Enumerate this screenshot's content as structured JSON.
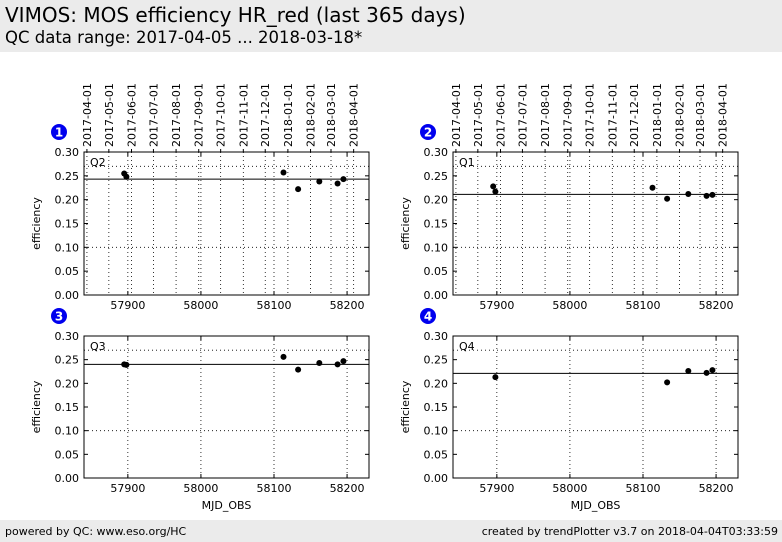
{
  "header": {
    "title": "VIMOS: MOS efficiency HR_red (last 365 days)",
    "subtitle": "QC data range: 2017-04-05 ... 2018-03-18*"
  },
  "footer": {
    "left": "powered by QC: www.eso.org/HC",
    "right": "created by trendPlotter v3.7 on 2018-04-04T03:33:59"
  },
  "chart_data": [
    {
      "type": "scatter",
      "panel_number": "1",
      "quadrant_label": "Q2",
      "ylabel": "efficiency",
      "xlabel": "",
      "xlim": [
        57840,
        58230
      ],
      "ylim": [
        0.0,
        0.3
      ],
      "x_ticks": [
        57900,
        58000,
        58100,
        58200
      ],
      "y_ticks": [
        "0.00",
        "0.05",
        "0.10",
        "0.15",
        "0.20",
        "0.25",
        "0.30"
      ],
      "dotted_lines": [
        0.1,
        0.27
      ],
      "reference_line": 0.243,
      "date_ticks": [
        "2017-04-01",
        "2017-05-01",
        "2017-06-01",
        "2017-07-01",
        "2017-08-01",
        "2017-09-01",
        "2017-10-01",
        "2017-11-01",
        "2017-12-01",
        "2018-01-01",
        "2018-02-01",
        "2018-03-01",
        "2018-04-01"
      ],
      "points": {
        "x": [
          57895,
          57898,
          58113,
          58133,
          58162,
          58187,
          58195
        ],
        "y": [
          0.255,
          0.248,
          0.257,
          0.222,
          0.238,
          0.234,
          0.243
        ]
      }
    },
    {
      "type": "scatter",
      "panel_number": "2",
      "quadrant_label": "Q1",
      "ylabel": "efficiency",
      "xlabel": "",
      "xlim": [
        57840,
        58230
      ],
      "ylim": [
        0.0,
        0.3
      ],
      "x_ticks": [
        57900,
        58000,
        58100,
        58200
      ],
      "y_ticks": [
        "0.00",
        "0.05",
        "0.10",
        "0.15",
        "0.20",
        "0.25",
        "0.30"
      ],
      "dotted_lines": [
        0.1,
        0.27
      ],
      "reference_line": 0.211,
      "date_ticks": [
        "2017-04-01",
        "2017-05-01",
        "2017-06-01",
        "2017-07-01",
        "2017-08-01",
        "2017-09-01",
        "2017-10-01",
        "2017-11-01",
        "2017-12-01",
        "2018-01-01",
        "2018-02-01",
        "2018-03-01",
        "2018-04-01"
      ],
      "points": {
        "x": [
          57895,
          57898,
          58113,
          58133,
          58162,
          58187,
          58195
        ],
        "y": [
          0.228,
          0.217,
          0.225,
          0.202,
          0.212,
          0.208,
          0.21
        ]
      }
    },
    {
      "type": "scatter",
      "panel_number": "3",
      "quadrant_label": "Q3",
      "ylabel": "efficiency",
      "xlabel": "MJD_OBS",
      "xlim": [
        57840,
        58230
      ],
      "ylim": [
        0.0,
        0.3
      ],
      "x_ticks": [
        57900,
        58000,
        58100,
        58200
      ],
      "y_ticks": [
        "0.00",
        "0.05",
        "0.10",
        "0.15",
        "0.20",
        "0.25",
        "0.30"
      ],
      "dotted_lines": [
        0.1,
        0.27
      ],
      "reference_line": 0.24,
      "date_ticks": [],
      "points": {
        "x": [
          57895,
          57898,
          58113,
          58133,
          58162,
          58187,
          58195
        ],
        "y": [
          0.24,
          0.239,
          0.256,
          0.229,
          0.243,
          0.24,
          0.247
        ]
      }
    },
    {
      "type": "scatter",
      "panel_number": "4",
      "quadrant_label": "Q4",
      "ylabel": "efficiency",
      "xlabel": "MJD_OBS",
      "xlim": [
        57840,
        58230
      ],
      "ylim": [
        0.0,
        0.3
      ],
      "x_ticks": [
        57900,
        58000,
        58100,
        58200
      ],
      "y_ticks": [
        "0.00",
        "0.05",
        "0.10",
        "0.15",
        "0.20",
        "0.25",
        "0.30"
      ],
      "dotted_lines": [
        0.1,
        0.27
      ],
      "reference_line": 0.221,
      "date_ticks": [],
      "points": {
        "x": [
          57898,
          58133,
          58162,
          58187,
          58195
        ],
        "y": [
          0.213,
          0.202,
          0.226,
          0.222,
          0.228
        ]
      }
    }
  ]
}
